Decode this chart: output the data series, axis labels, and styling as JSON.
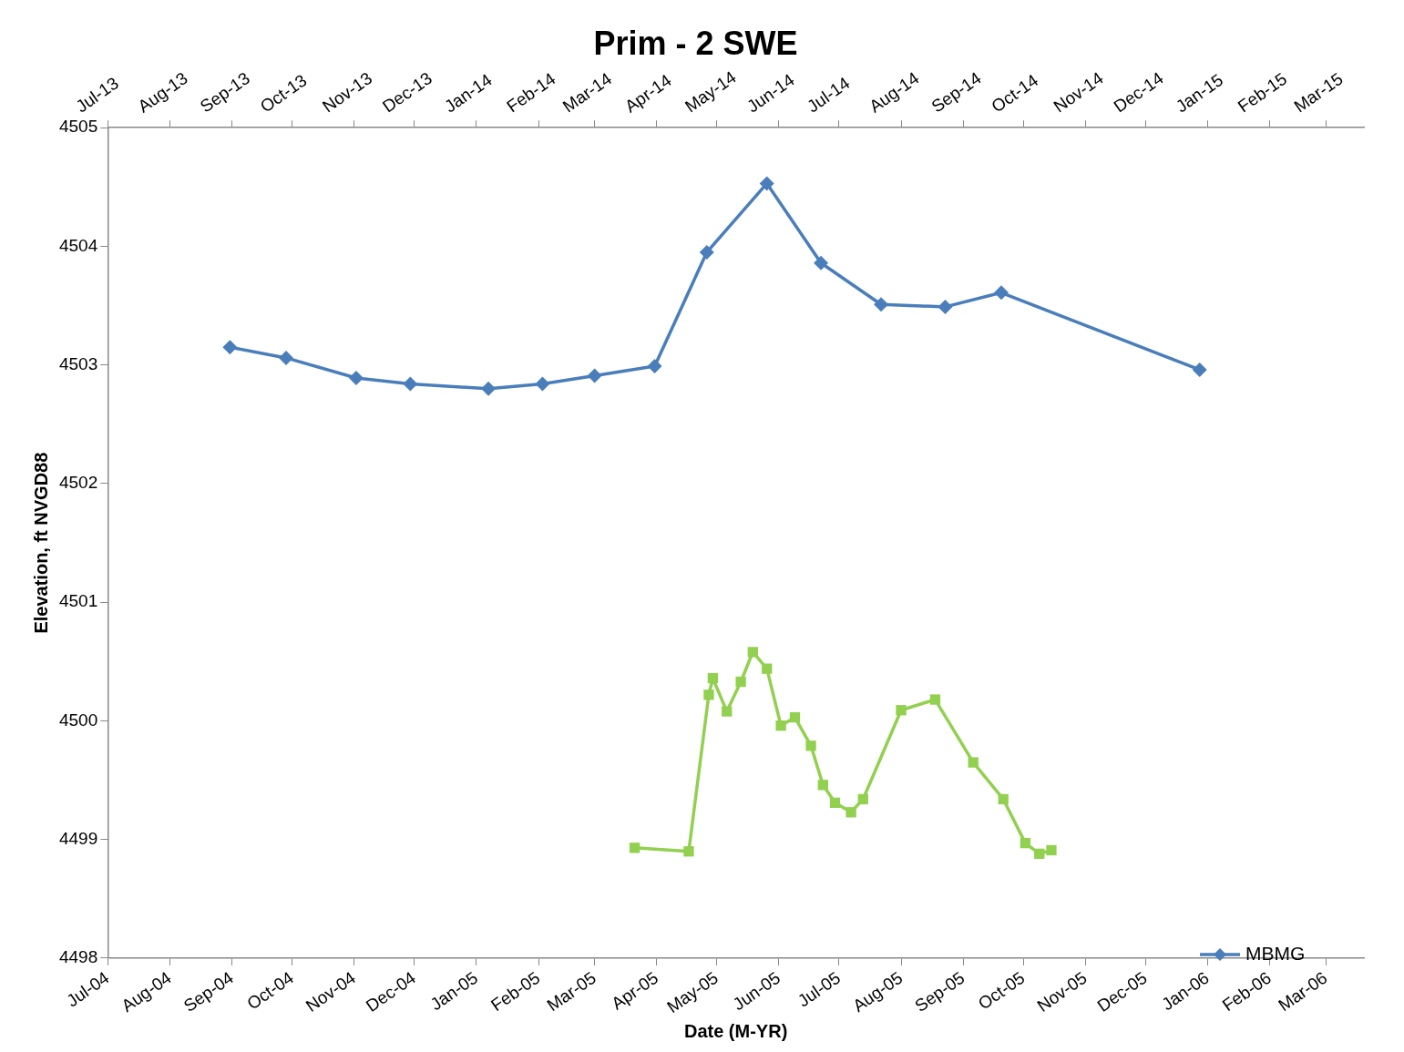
{
  "chart_data": {
    "type": "line",
    "title": "Prim - 2 SWE",
    "xlabel": "Date (M-YR)",
    "ylabel": "Elevation, ft NVGD88",
    "xlim": [
      "2004-07-01",
      "2006-03-20"
    ],
    "xticks": [
      {
        "value": "2004-07-01",
        "label": "Jul-04"
      },
      {
        "value": "2004-08-01",
        "label": "Aug-04"
      },
      {
        "value": "2004-09-01",
        "label": "Sep-04"
      },
      {
        "value": "2004-10-01",
        "label": "Oct-04"
      },
      {
        "value": "2004-11-01",
        "label": "Nov-04"
      },
      {
        "value": "2004-12-01",
        "label": "Dec-04"
      },
      {
        "value": "2005-01-01",
        "label": "Jan-05"
      },
      {
        "value": "2005-02-01",
        "label": "Feb-05"
      },
      {
        "value": "2005-03-01",
        "label": "Mar-05"
      },
      {
        "value": "2005-04-01",
        "label": "Apr-05"
      },
      {
        "value": "2005-05-01",
        "label": "May-05"
      },
      {
        "value": "2005-06-01",
        "label": "Jun-05"
      },
      {
        "value": "2005-07-01",
        "label": "Jul-05"
      },
      {
        "value": "2005-08-01",
        "label": "Aug-05"
      },
      {
        "value": "2005-09-01",
        "label": "Sep-05"
      },
      {
        "value": "2005-10-01",
        "label": "Oct-05"
      },
      {
        "value": "2005-11-01",
        "label": "Nov-05"
      },
      {
        "value": "2005-12-01",
        "label": "Dec-05"
      },
      {
        "value": "2006-01-01",
        "label": "Jan-06"
      },
      {
        "value": "2006-02-01",
        "label": "Feb-06"
      },
      {
        "value": "2006-03-01",
        "label": "Mar-06"
      }
    ],
    "x2lim": [
      "2013-07-01",
      "2015-03-20"
    ],
    "x2ticks": [
      {
        "value": "2013-07-01",
        "label": "Jul-13"
      },
      {
        "value": "2013-08-01",
        "label": "Aug-13"
      },
      {
        "value": "2013-09-01",
        "label": "Sep-13"
      },
      {
        "value": "2013-10-01",
        "label": "Oct-13"
      },
      {
        "value": "2013-11-01",
        "label": "Nov-13"
      },
      {
        "value": "2013-12-01",
        "label": "Dec-13"
      },
      {
        "value": "2014-01-01",
        "label": "Jan-14"
      },
      {
        "value": "2014-02-01",
        "label": "Feb-14"
      },
      {
        "value": "2014-03-01",
        "label": "Mar-14"
      },
      {
        "value": "2014-04-01",
        "label": "Apr-14"
      },
      {
        "value": "2014-05-01",
        "label": "May-14"
      },
      {
        "value": "2014-06-01",
        "label": "Jun-14"
      },
      {
        "value": "2014-07-01",
        "label": "Jul-14"
      },
      {
        "value": "2014-08-01",
        "label": "Aug-14"
      },
      {
        "value": "2014-09-01",
        "label": "Sep-14"
      },
      {
        "value": "2014-10-01",
        "label": "Oct-14"
      },
      {
        "value": "2014-11-01",
        "label": "Nov-14"
      },
      {
        "value": "2014-12-01",
        "label": "Dec-14"
      },
      {
        "value": "2015-01-01",
        "label": "Jan-15"
      },
      {
        "value": "2015-02-01",
        "label": "Feb-15"
      },
      {
        "value": "2015-03-01",
        "label": "Mar-15"
      }
    ],
    "ylim": [
      4498,
      4505
    ],
    "yticks": [
      4498,
      4499,
      4500,
      4501,
      4502,
      4503,
      4504,
      4505
    ],
    "grid": false,
    "legend": "bottom right",
    "line_style": "solid",
    "series": [
      {
        "color": "#92d050",
        "marker": "square",
        "x": [
          "2005-03-21",
          "2005-04-17",
          "2005-04-27",
          "2005-04-29",
          "2005-05-06",
          "2005-05-13",
          "2005-05-19",
          "2005-05-26",
          "2005-06-02",
          "2005-06-09",
          "2005-06-17",
          "2005-06-23",
          "2005-06-29",
          "2005-07-07",
          "2005-07-13",
          "2005-08-01",
          "2005-08-18",
          "2005-09-06",
          "2005-09-21",
          "2005-10-02",
          "2005-10-09",
          "2005-10-15"
        ],
        "values": [
          4498.93,
          4498.9,
          4500.22,
          4500.36,
          4500.08,
          4500.33,
          4500.58,
          4500.44,
          4499.96,
          4500.03,
          4499.79,
          4499.46,
          4499.31,
          4499.23,
          4499.34,
          4500.09,
          4500.18,
          4499.65,
          4499.34,
          4498.97,
          4498.88,
          4498.91
        ]
      },
      {
        "name": "MBMG",
        "color": "#4a7ebb",
        "marker": "diamond",
        "axis": "x2",
        "x": [
          "2013-08-31",
          "2013-09-28",
          "2013-11-02",
          "2013-11-29",
          "2014-01-07",
          "2014-02-03",
          "2014-03-01",
          "2014-03-31",
          "2014-04-26",
          "2014-05-26",
          "2014-06-22",
          "2014-07-22",
          "2014-08-23",
          "2014-09-20",
          "2014-12-28"
        ],
        "values": [
          4503.15,
          4503.06,
          4502.89,
          4502.84,
          4502.8,
          4502.84,
          4502.91,
          4502.99,
          4503.95,
          4504.53,
          4503.86,
          4503.51,
          4503.49,
          4503.61,
          4502.96
        ]
      }
    ]
  }
}
